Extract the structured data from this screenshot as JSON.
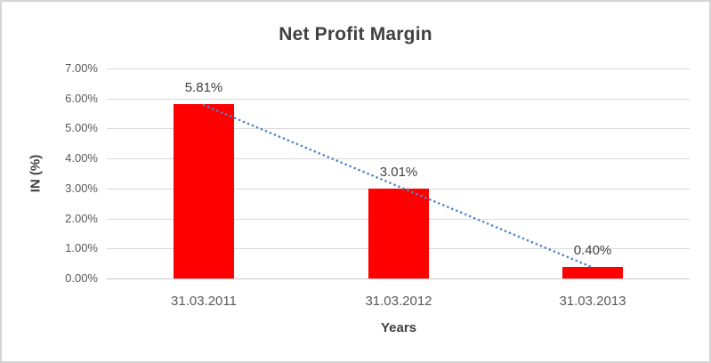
{
  "frame": {
    "background": "#ffffff",
    "border_color": "#d5d5d5"
  },
  "chart_data": {
    "type": "bar",
    "title": "Net Profit Margin",
    "xlabel": "Years",
    "ylabel": "IN (%)",
    "categories": [
      "31.03.2011",
      "31.03.2012",
      "31.03.2013"
    ],
    "values": [
      5.81,
      3.01,
      0.4
    ],
    "data_labels": [
      "5.81%",
      "3.01%",
      "0.40%"
    ],
    "y_ticks": [
      "7.00%",
      "6.00%",
      "5.00%",
      "4.00%",
      "3.00%",
      "2.00%",
      "1.00%",
      "0.00%"
    ],
    "ylim": [
      0,
      7
    ],
    "y_tick_step": 1,
    "grid": true,
    "legend": "none",
    "bar_color": "#ff0000",
    "gridline_color": "#d9d9d9",
    "title_color": "#404040",
    "axis_text_color": "#595959",
    "trendline": {
      "type": "linear",
      "style": "dotted",
      "color": "#4d86c8"
    }
  }
}
